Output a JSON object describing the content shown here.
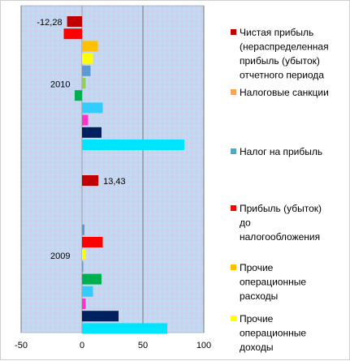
{
  "chart_data": {
    "type": "bar",
    "orientation": "horizontal",
    "xlim": [
      -50,
      100
    ],
    "x_ticks": [
      "-50",
      "0",
      "50",
      "100"
    ],
    "grid": "vertical gridlines",
    "legend_position": "right",
    "categories": [
      {
        "label": "2010",
        "bars": [
          {
            "color": "#c00000",
            "value": -12.28,
            "label": "-12,28"
          },
          {
            "color": "#ff0000",
            "value": -15
          },
          {
            "color": "#ffc000",
            "value": 13
          },
          {
            "color": "#ffff00",
            "value": 9
          },
          {
            "color": "#5b9bd5",
            "value": 7
          },
          {
            "color": "#92d050",
            "value": 3
          },
          {
            "color": "#00b050",
            "value": -6
          },
          {
            "color": "#33ccff",
            "value": 17
          },
          {
            "color": "#ff33cc",
            "value": 5
          },
          {
            "color": "#002060",
            "value": 16
          },
          {
            "color": "#00e5ff",
            "value": 84
          }
        ]
      },
      {
        "label": "2009",
        "bars": [
          {
            "color": "#c00000",
            "value": 13.43,
            "label": "13,43"
          },
          {
            "color": "#ff0000",
            "value": 0
          },
          {
            "color": "#ffc000",
            "value": 0
          },
          {
            "color": "#ffff00",
            "value": 0
          },
          {
            "color": "#5b9bd5",
            "value": 2
          },
          {
            "color": "#ff0000",
            "value": 17
          },
          {
            "color": "#ffff00",
            "value": 3
          },
          {
            "color": "#5b9bd5",
            "value": 1
          },
          {
            "color": "#00b050",
            "value": 16
          },
          {
            "color": "#33ccff",
            "value": 9
          },
          {
            "color": "#ff33cc",
            "value": 3
          },
          {
            "color": "#002060",
            "value": 30
          },
          {
            "color": "#00e5ff",
            "value": 70
          }
        ]
      }
    ],
    "legend": [
      {
        "color": "#c00000",
        "lines": [
          "Чистая прибыль",
          "(нераспределенная",
          "прибыль  (убыток)",
          "отчетного периода"
        ]
      },
      {
        "color": "#f4a460",
        "lines": [
          "Налоговые санкции"
        ]
      },
      {
        "color": "#4bacc6",
        "lines": [
          "Налог на прибыль"
        ]
      },
      {
        "color": "#ff0000",
        "lines": [
          "Прибыль  (убыток)",
          "до",
          "налогообложения"
        ]
      },
      {
        "color": "#ffc000",
        "lines": [
          "Прочие",
          "операционные",
          "расходы"
        ]
      },
      {
        "color": "#ffff00",
        "lines": [
          "Прочие",
          "операционные",
          "доходы"
        ]
      }
    ]
  }
}
